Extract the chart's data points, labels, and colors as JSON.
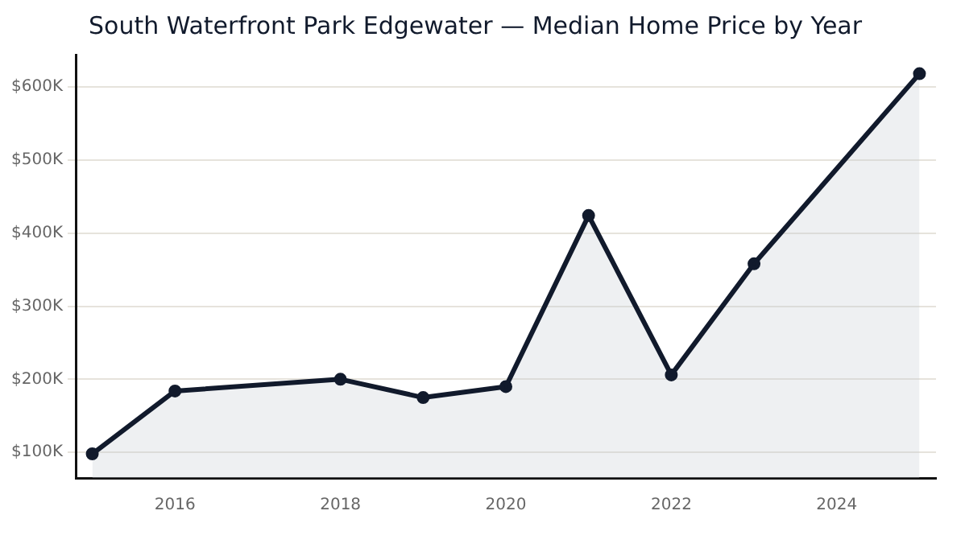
{
  "chart_data": {
    "type": "area",
    "title": "South Waterfront Park Edgewater — Median Home Price by Year",
    "x": [
      2015,
      2016,
      2018,
      2019,
      2020,
      2021,
      2022,
      2023,
      2025
    ],
    "series": [
      {
        "color": "#111a2c",
        "values": [
          98000,
          184000,
          200000,
          175000,
          190000,
          424000,
          206000,
          358000,
          618000
        ]
      }
    ],
    "xlim": [
      2014.8,
      2025.2
    ],
    "xticks": [
      2016,
      2018,
      2020,
      2022,
      2024
    ],
    "ylim": [
      65000,
      644000
    ],
    "yticks": [
      {
        "value": 100000,
        "label": "$100K"
      },
      {
        "value": 200000,
        "label": "$200K"
      },
      {
        "value": 300000,
        "label": "$300K"
      },
      {
        "value": 400000,
        "label": "$400K"
      },
      {
        "value": 500000,
        "label": "$500K"
      },
      {
        "value": 600000,
        "label": "$600K"
      }
    ],
    "grid": "y",
    "marker": "circle",
    "legend": false
  }
}
